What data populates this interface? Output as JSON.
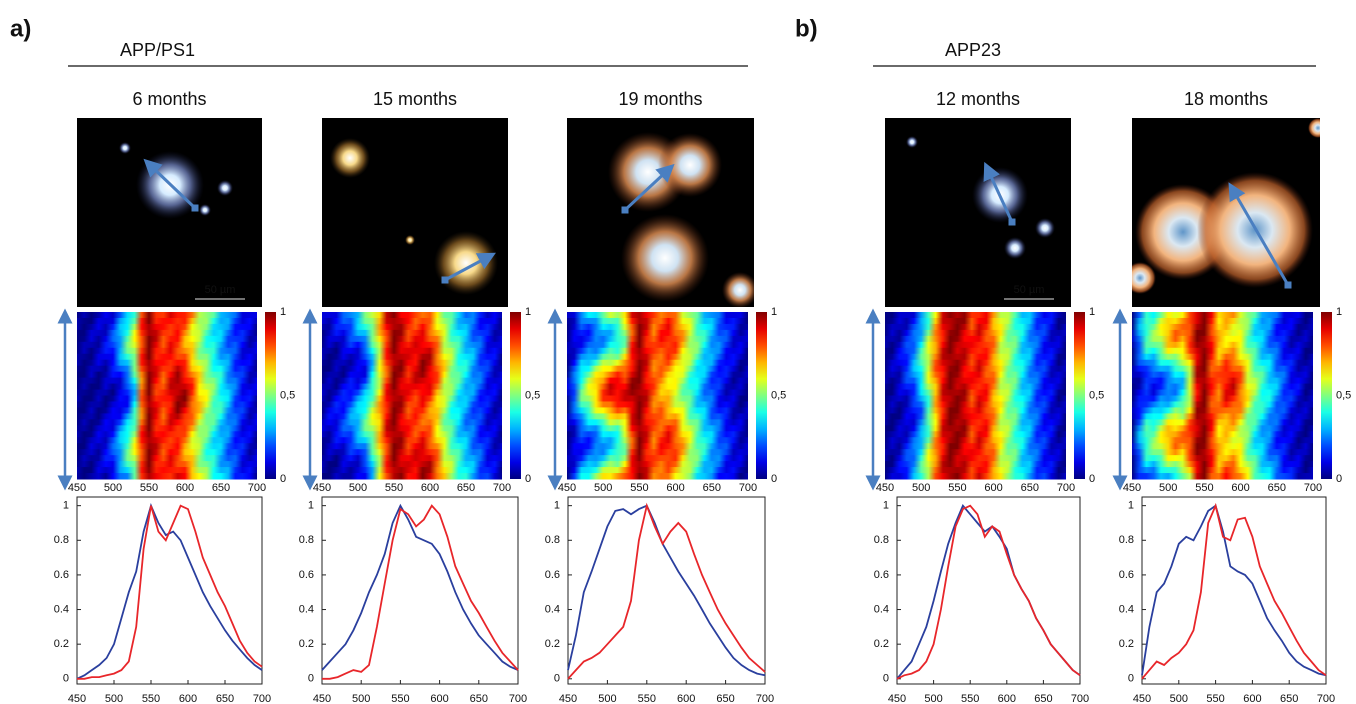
{
  "figure": {
    "panel_labels": [
      "a)",
      "b)"
    ],
    "groups": [
      "APP/PS1",
      "APP23"
    ],
    "scale_bars": [
      "50 µm",
      "50 µm"
    ]
  },
  "panels": [
    {
      "title": "6 months"
    },
    {
      "title": "15 months"
    },
    {
      "title": "19 months"
    },
    {
      "title": "12 months"
    },
    {
      "title": "18 months"
    }
  ],
  "heatmap": {
    "xlim": [
      450,
      700
    ],
    "xticks": [
      450,
      500,
      550,
      600,
      650,
      700
    ],
    "colorbar": {
      "lim": [
        0,
        1
      ],
      "ticks": [
        0,
        {
          "value": 0.5,
          "label": "0,5"
        },
        1
      ]
    }
  },
  "chart_data": [
    {
      "type": "line",
      "xlim": [
        450,
        700
      ],
      "ylim": [
        -0.03,
        1.05
      ],
      "xticks": [
        450,
        500,
        550,
        600,
        650,
        700
      ],
      "yticks": [
        0,
        0.2,
        0.4,
        0.6,
        0.8,
        1
      ],
      "x": [
        450,
        460,
        470,
        480,
        490,
        500,
        510,
        520,
        530,
        540,
        550,
        560,
        570,
        580,
        590,
        600,
        610,
        620,
        630,
        640,
        650,
        660,
        670,
        680,
        690,
        700
      ],
      "series": [
        {
          "color": "#2a3f9e",
          "values": [
            0,
            0.02,
            0.05,
            0.08,
            0.12,
            0.2,
            0.35,
            0.5,
            0.62,
            0.85,
            1.0,
            0.9,
            0.83,
            0.85,
            0.8,
            0.7,
            0.6,
            0.5,
            0.42,
            0.35,
            0.28,
            0.22,
            0.17,
            0.12,
            0.08,
            0.05
          ]
        },
        {
          "color": "#e8262a",
          "values": [
            0,
            0,
            0.01,
            0.01,
            0.02,
            0.03,
            0.05,
            0.1,
            0.3,
            0.75,
            1.0,
            0.85,
            0.8,
            0.9,
            1.0,
            0.98,
            0.85,
            0.7,
            0.6,
            0.5,
            0.42,
            0.32,
            0.22,
            0.15,
            0.1,
            0.07
          ]
        }
      ]
    },
    {
      "type": "line",
      "xlim": [
        450,
        700
      ],
      "ylim": [
        -0.03,
        1.05
      ],
      "xticks": [
        450,
        500,
        550,
        600,
        650,
        700
      ],
      "yticks": [
        0,
        0.2,
        0.4,
        0.6,
        0.8,
        1
      ],
      "x": [
        450,
        460,
        470,
        480,
        490,
        500,
        510,
        520,
        530,
        540,
        550,
        560,
        570,
        580,
        590,
        600,
        610,
        620,
        630,
        640,
        650,
        660,
        670,
        680,
        690,
        700
      ],
      "series": [
        {
          "color": "#2a3f9e",
          "values": [
            0.05,
            0.1,
            0.15,
            0.2,
            0.28,
            0.38,
            0.5,
            0.6,
            0.72,
            0.9,
            1.0,
            0.92,
            0.82,
            0.8,
            0.78,
            0.72,
            0.62,
            0.5,
            0.4,
            0.32,
            0.25,
            0.2,
            0.15,
            0.1,
            0.07,
            0.05
          ]
        },
        {
          "color": "#e8262a",
          "values": [
            0,
            0,
            0.01,
            0.03,
            0.05,
            0.04,
            0.08,
            0.3,
            0.55,
            0.8,
            0.98,
            0.95,
            0.88,
            0.92,
            1.0,
            0.95,
            0.82,
            0.65,
            0.55,
            0.45,
            0.38,
            0.3,
            0.22,
            0.15,
            0.1,
            0.05
          ]
        }
      ]
    },
    {
      "type": "line",
      "xlim": [
        450,
        700
      ],
      "ylim": [
        -0.03,
        1.05
      ],
      "xticks": [
        450,
        500,
        550,
        600,
        650,
        700
      ],
      "yticks": [
        0,
        0.2,
        0.4,
        0.6,
        0.8,
        1
      ],
      "x": [
        450,
        460,
        470,
        480,
        490,
        500,
        510,
        520,
        530,
        540,
        550,
        560,
        570,
        580,
        590,
        600,
        610,
        620,
        630,
        640,
        650,
        660,
        670,
        680,
        690,
        700
      ],
      "series": [
        {
          "color": "#2a3f9e",
          "values": [
            0.05,
            0.25,
            0.5,
            0.62,
            0.75,
            0.88,
            0.97,
            0.98,
            0.95,
            0.98,
            1.0,
            0.9,
            0.78,
            0.7,
            0.62,
            0.55,
            0.48,
            0.4,
            0.32,
            0.25,
            0.18,
            0.12,
            0.08,
            0.05,
            0.03,
            0.02
          ]
        },
        {
          "color": "#e8262a",
          "values": [
            0,
            0.05,
            0.1,
            0.12,
            0.15,
            0.2,
            0.25,
            0.3,
            0.45,
            0.8,
            1.0,
            0.88,
            0.78,
            0.85,
            0.9,
            0.85,
            0.72,
            0.6,
            0.5,
            0.4,
            0.32,
            0.25,
            0.18,
            0.12,
            0.08,
            0.04
          ]
        }
      ]
    },
    {
      "type": "line",
      "xlim": [
        450,
        700
      ],
      "ylim": [
        -0.03,
        1.05
      ],
      "xticks": [
        450,
        500,
        550,
        600,
        650,
        700
      ],
      "yticks": [
        0,
        0.2,
        0.4,
        0.6,
        0.8,
        1
      ],
      "x": [
        450,
        460,
        470,
        480,
        490,
        500,
        510,
        520,
        530,
        540,
        550,
        560,
        570,
        580,
        590,
        600,
        610,
        620,
        630,
        640,
        650,
        660,
        670,
        680,
        690,
        700
      ],
      "series": [
        {
          "color": "#2a3f9e",
          "values": [
            0,
            0.05,
            0.1,
            0.2,
            0.3,
            0.45,
            0.62,
            0.78,
            0.9,
            1.0,
            0.95,
            0.9,
            0.85,
            0.88,
            0.82,
            0.75,
            0.6,
            0.52,
            0.45,
            0.35,
            0.28,
            0.2,
            0.15,
            0.1,
            0.05,
            0.02
          ]
        },
        {
          "color": "#e8262a",
          "values": [
            0,
            0.02,
            0.03,
            0.05,
            0.1,
            0.2,
            0.4,
            0.65,
            0.88,
            0.98,
            1.0,
            0.95,
            0.82,
            0.88,
            0.85,
            0.72,
            0.6,
            0.52,
            0.45,
            0.35,
            0.28,
            0.2,
            0.15,
            0.1,
            0.05,
            0.02
          ]
        }
      ]
    },
    {
      "type": "line",
      "xlim": [
        450,
        700
      ],
      "ylim": [
        -0.03,
        1.05
      ],
      "xticks": [
        450,
        500,
        550,
        600,
        650,
        700
      ],
      "yticks": [
        0,
        0.2,
        0.4,
        0.6,
        0.8,
        1
      ],
      "x": [
        450,
        460,
        470,
        480,
        490,
        500,
        510,
        520,
        530,
        540,
        550,
        560,
        570,
        580,
        590,
        600,
        610,
        620,
        630,
        640,
        650,
        660,
        670,
        680,
        690,
        700
      ],
      "series": [
        {
          "color": "#2a3f9e",
          "values": [
            0.02,
            0.3,
            0.5,
            0.55,
            0.65,
            0.78,
            0.82,
            0.8,
            0.88,
            0.97,
            1.0,
            0.85,
            0.65,
            0.62,
            0.6,
            0.55,
            0.45,
            0.35,
            0.28,
            0.22,
            0.15,
            0.1,
            0.07,
            0.05,
            0.03,
            0.02
          ]
        },
        {
          "color": "#e8262a",
          "values": [
            0,
            0.05,
            0.1,
            0.08,
            0.12,
            0.15,
            0.2,
            0.28,
            0.5,
            0.9,
            1.0,
            0.82,
            0.8,
            0.92,
            0.93,
            0.82,
            0.65,
            0.55,
            0.45,
            0.38,
            0.3,
            0.22,
            0.15,
            0.1,
            0.05,
            0.02
          ]
        }
      ]
    }
  ]
}
